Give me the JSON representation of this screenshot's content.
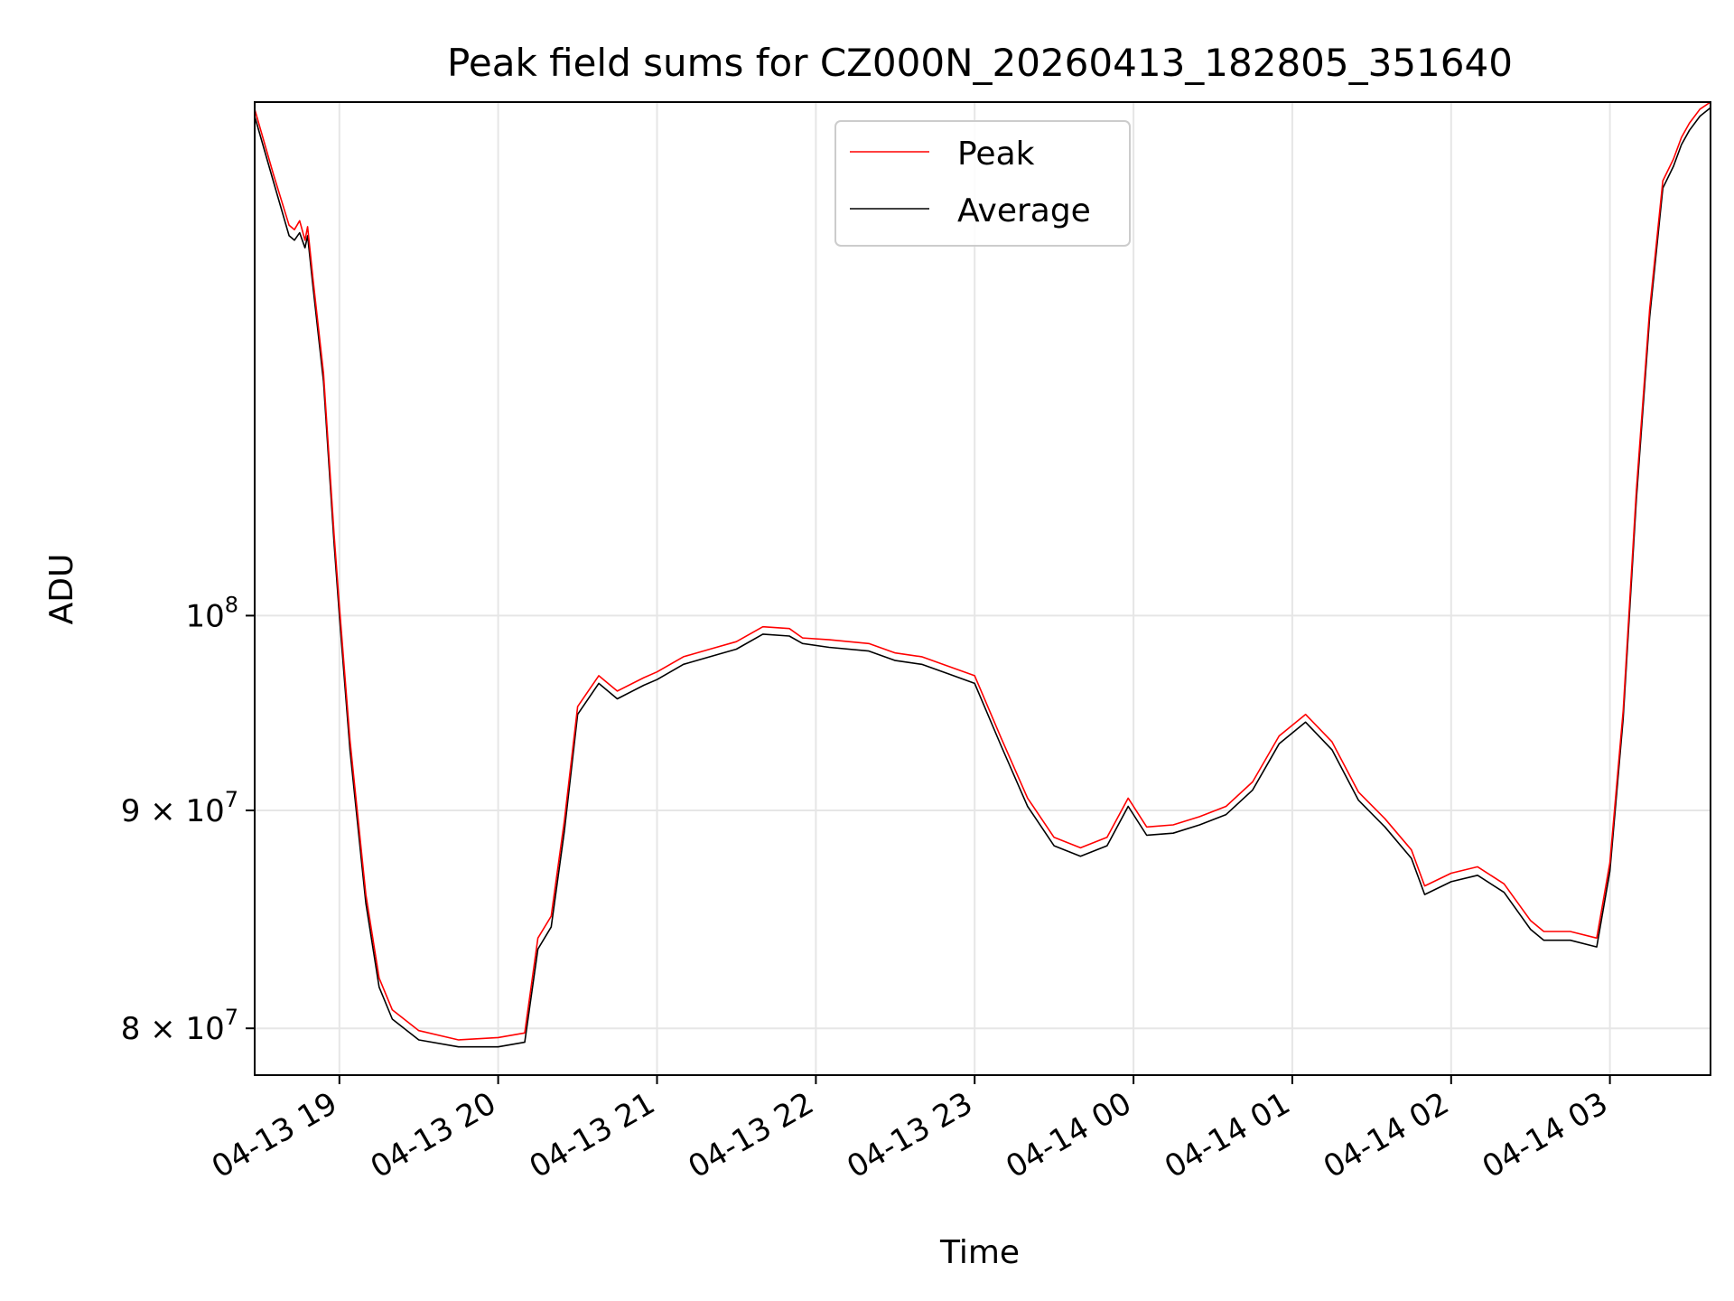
{
  "chart_data": {
    "type": "line",
    "title": "Peak field sums for CZ000N_20260413_182805_351640",
    "xlabel": "Time",
    "ylabel": "ADU",
    "yscale": "log",
    "grid": true,
    "legend_position": "top-center",
    "xlim": [
      "2026-04-13T18:28",
      "2026-04-14T03:38"
    ],
    "ylim": [
      78000000,
      132000000
    ],
    "x_ticks": [
      "2026-04-13T19:00",
      "2026-04-13T20:00",
      "2026-04-13T21:00",
      "2026-04-13T22:00",
      "2026-04-13T23:00",
      "2026-04-14T00:00",
      "2026-04-14T01:00",
      "2026-04-14T02:00",
      "2026-04-14T03:00"
    ],
    "x_tick_labels": [
      "04-13 19",
      "04-13 20",
      "04-13 21",
      "04-13 22",
      "04-13 23",
      "04-14 00",
      "04-14 01",
      "04-14 02",
      "04-14 03"
    ],
    "y_ticks": [
      80000000,
      90000000,
      100000000
    ],
    "y_tick_labels": [
      {
        "base": "8",
        "mul": "×",
        "pow": "10",
        "exp": "7"
      },
      {
        "base": "9",
        "mul": "×",
        "pow": "10",
        "exp": "7"
      },
      {
        "base": "",
        "mul": "",
        "pow": "10",
        "exp": "8"
      }
    ],
    "series": [
      {
        "name": "Peak",
        "color": "#ff0000",
        "x": [
          "2026-04-13T18:28",
          "2026-04-13T18:35",
          "2026-04-13T18:41",
          "2026-04-13T18:43",
          "2026-04-13T18:45",
          "2026-04-13T18:47",
          "2026-04-13T18:48",
          "2026-04-13T18:50",
          "2026-04-13T18:54",
          "2026-04-13T18:58",
          "2026-04-13T19:00",
          "2026-04-13T19:04",
          "2026-04-13T19:10",
          "2026-04-13T19:15",
          "2026-04-13T19:20",
          "2026-04-13T19:30",
          "2026-04-13T19:45",
          "2026-04-13T20:00",
          "2026-04-13T20:10",
          "2026-04-13T20:15",
          "2026-04-13T20:20",
          "2026-04-13T20:25",
          "2026-04-13T20:30",
          "2026-04-13T20:38",
          "2026-04-13T20:45",
          "2026-04-13T20:55",
          "2026-04-13T21:00",
          "2026-04-13T21:10",
          "2026-04-13T21:20",
          "2026-04-13T21:30",
          "2026-04-13T21:40",
          "2026-04-13T21:50",
          "2026-04-13T21:55",
          "2026-04-13T22:05",
          "2026-04-13T22:20",
          "2026-04-13T22:30",
          "2026-04-13T22:40",
          "2026-04-13T22:50",
          "2026-04-13T23:00",
          "2026-04-13T23:10",
          "2026-04-13T23:20",
          "2026-04-13T23:30",
          "2026-04-13T23:40",
          "2026-04-13T23:50",
          "2026-04-13T23:58",
          "2026-04-14T00:05",
          "2026-04-14T00:15",
          "2026-04-14T00:25",
          "2026-04-14T00:35",
          "2026-04-14T00:45",
          "2026-04-14T00:55",
          "2026-04-14T01:05",
          "2026-04-14T01:15",
          "2026-04-14T01:25",
          "2026-04-14T01:35",
          "2026-04-14T01:45",
          "2026-04-14T01:50",
          "2026-04-14T02:00",
          "2026-04-14T02:10",
          "2026-04-14T02:20",
          "2026-04-14T02:30",
          "2026-04-14T02:35",
          "2026-04-14T02:45",
          "2026-04-14T02:55",
          "2026-04-14T03:00",
          "2026-04-14T03:05",
          "2026-04-14T03:10",
          "2026-04-14T03:15",
          "2026-04-14T03:20",
          "2026-04-14T03:24",
          "2026-04-14T03:27",
          "2026-04-14T03:30",
          "2026-04-14T03:34",
          "2026-04-14T03:38"
        ],
        "y": [
          131500000,
          127000000,
          123500000,
          123200000,
          123800000,
          122500000,
          123400000,
          120000000,
          114000000,
          104500000,
          100500000,
          93500000,
          86000000,
          82200000,
          80800000,
          79900000,
          79500000,
          79600000,
          79800000,
          84000000,
          85000000,
          89500000,
          95200000,
          96800000,
          96000000,
          96700000,
          97000000,
          97800000,
          98200000,
          98600000,
          99400000,
          99300000,
          98800000,
          98700000,
          98500000,
          98000000,
          97800000,
          97300000,
          96800000,
          93600000,
          90600000,
          88700000,
          88200000,
          88700000,
          90600000,
          89200000,
          89300000,
          89700000,
          90200000,
          91400000,
          93700000,
          94800000,
          93400000,
          90900000,
          89600000,
          88100000,
          86400000,
          87000000,
          87300000,
          86500000,
          84800000,
          84300000,
          84300000,
          84000000,
          87500000,
          95000000,
          107000000,
          118000000,
          126500000,
          128000000,
          129500000,
          130500000,
          131500000,
          132000000
        ]
      },
      {
        "name": "Average",
        "color": "#000000",
        "x": [
          "2026-04-13T18:28",
          "2026-04-13T18:35",
          "2026-04-13T18:41",
          "2026-04-13T18:43",
          "2026-04-13T18:45",
          "2026-04-13T18:47",
          "2026-04-13T18:48",
          "2026-04-13T18:50",
          "2026-04-13T18:54",
          "2026-04-13T18:58",
          "2026-04-13T19:00",
          "2026-04-13T19:04",
          "2026-04-13T19:10",
          "2026-04-13T19:15",
          "2026-04-13T19:20",
          "2026-04-13T19:30",
          "2026-04-13T19:45",
          "2026-04-13T20:00",
          "2026-04-13T20:10",
          "2026-04-13T20:15",
          "2026-04-13T20:20",
          "2026-04-13T20:25",
          "2026-04-13T20:30",
          "2026-04-13T20:38",
          "2026-04-13T20:45",
          "2026-04-13T20:55",
          "2026-04-13T21:00",
          "2026-04-13T21:10",
          "2026-04-13T21:20",
          "2026-04-13T21:30",
          "2026-04-13T21:40",
          "2026-04-13T21:50",
          "2026-04-13T21:55",
          "2026-04-13T22:05",
          "2026-04-13T22:20",
          "2026-04-13T22:30",
          "2026-04-13T22:40",
          "2026-04-13T22:50",
          "2026-04-13T23:00",
          "2026-04-13T23:10",
          "2026-04-13T23:20",
          "2026-04-13T23:30",
          "2026-04-13T23:40",
          "2026-04-13T23:50",
          "2026-04-13T23:58",
          "2026-04-14T00:05",
          "2026-04-14T00:15",
          "2026-04-14T00:25",
          "2026-04-14T00:35",
          "2026-04-14T00:45",
          "2026-04-14T00:55",
          "2026-04-14T01:05",
          "2026-04-14T01:15",
          "2026-04-14T01:25",
          "2026-04-14T01:35",
          "2026-04-14T01:45",
          "2026-04-14T01:50",
          "2026-04-14T02:00",
          "2026-04-14T02:10",
          "2026-04-14T02:20",
          "2026-04-14T02:30",
          "2026-04-14T02:35",
          "2026-04-14T02:45",
          "2026-04-14T02:55",
          "2026-04-14T03:00",
          "2026-04-14T03:05",
          "2026-04-14T03:10",
          "2026-04-14T03:15",
          "2026-04-14T03:20",
          "2026-04-14T03:24",
          "2026-04-14T03:27",
          "2026-04-14T03:30",
          "2026-04-14T03:34",
          "2026-04-14T03:38"
        ],
        "y": [
          131000000,
          126500000,
          122800000,
          122500000,
          123000000,
          122000000,
          122800000,
          119500000,
          113500000,
          104000000,
          100000000,
          93000000,
          85600000,
          81800000,
          80400000,
          79500000,
          79200000,
          79200000,
          79400000,
          83500000,
          84500000,
          89000000,
          94800000,
          96400000,
          95600000,
          96300000,
          96600000,
          97400000,
          97800000,
          98200000,
          99000000,
          98900000,
          98500000,
          98300000,
          98100000,
          97600000,
          97400000,
          96900000,
          96400000,
          93200000,
          90200000,
          88300000,
          87800000,
          88300000,
          90200000,
          88800000,
          88900000,
          89300000,
          89800000,
          91000000,
          93300000,
          94400000,
          93000000,
          90500000,
          89200000,
          87700000,
          86000000,
          86600000,
          86900000,
          86100000,
          84400000,
          83900000,
          83900000,
          83600000,
          87100000,
          94600000,
          106500000,
          117500000,
          126000000,
          127500000,
          129000000,
          130000000,
          131000000,
          131600000
        ]
      }
    ]
  }
}
